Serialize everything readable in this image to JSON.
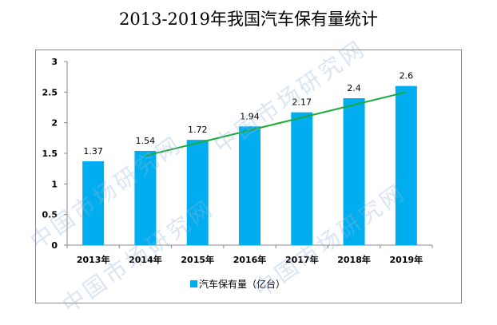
{
  "chart_data": {
    "type": "bar",
    "title": "2013-2019年我国汽车保有量统计",
    "categories": [
      "2013年",
      "2014年",
      "2015年",
      "2016年",
      "2017年",
      "2018年",
      "2019年"
    ],
    "series": [
      {
        "name": "汽车保有量（亿台）",
        "values": [
          1.37,
          1.54,
          1.72,
          1.94,
          2.17,
          2.4,
          2.6
        ],
        "color": "#00AEEF"
      }
    ],
    "data_labels": [
      "1.37",
      "1.54",
      "1.72",
      "1.94",
      "2.17",
      "2.4",
      "2.6"
    ],
    "y_ticks": [
      "0",
      "0.5",
      "1",
      "1.5",
      "2",
      "2.5",
      "3"
    ],
    "ylim": [
      0,
      3
    ],
    "trendline": {
      "from_category": "2014年",
      "to_category": "2019年",
      "start": 1.46,
      "end": 2.5,
      "color": "#1AAA3A"
    },
    "legend": "bottom",
    "grid": false,
    "xlabel": "",
    "ylabel": ""
  },
  "watermark": "中国市场研究网"
}
